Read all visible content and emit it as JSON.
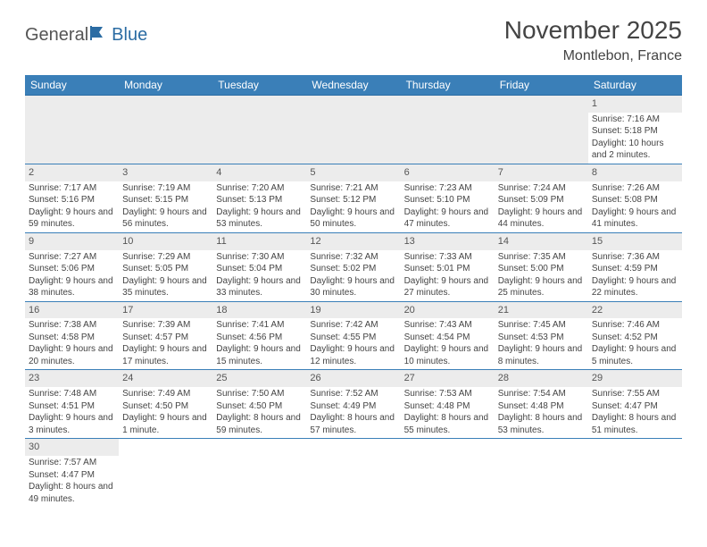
{
  "logo": {
    "general": "General",
    "blue": "Blue"
  },
  "title": "November 2025",
  "location": "Montlebon, France",
  "colors": {
    "header_bg": "#3a7fb8",
    "header_text": "#ffffff",
    "row_divider": "#3a7fb8",
    "daynum_bg": "#ececec",
    "body_text": "#444444",
    "logo_blue": "#2b6ca3"
  },
  "typography": {
    "title_fontsize": 28,
    "location_fontsize": 16,
    "header_fontsize": 12,
    "daynum_fontsize": 11,
    "cell_fontsize": 10
  },
  "weekdays": [
    "Sunday",
    "Monday",
    "Tuesday",
    "Wednesday",
    "Thursday",
    "Friday",
    "Saturday"
  ],
  "weeks": [
    [
      null,
      null,
      null,
      null,
      null,
      null,
      {
        "n": "1",
        "sr": "Sunrise: 7:16 AM",
        "ss": "Sunset: 5:18 PM",
        "dl": "Daylight: 10 hours and 2 minutes."
      }
    ],
    [
      {
        "n": "2",
        "sr": "Sunrise: 7:17 AM",
        "ss": "Sunset: 5:16 PM",
        "dl": "Daylight: 9 hours and 59 minutes."
      },
      {
        "n": "3",
        "sr": "Sunrise: 7:19 AM",
        "ss": "Sunset: 5:15 PM",
        "dl": "Daylight: 9 hours and 56 minutes."
      },
      {
        "n": "4",
        "sr": "Sunrise: 7:20 AM",
        "ss": "Sunset: 5:13 PM",
        "dl": "Daylight: 9 hours and 53 minutes."
      },
      {
        "n": "5",
        "sr": "Sunrise: 7:21 AM",
        "ss": "Sunset: 5:12 PM",
        "dl": "Daylight: 9 hours and 50 minutes."
      },
      {
        "n": "6",
        "sr": "Sunrise: 7:23 AM",
        "ss": "Sunset: 5:10 PM",
        "dl": "Daylight: 9 hours and 47 minutes."
      },
      {
        "n": "7",
        "sr": "Sunrise: 7:24 AM",
        "ss": "Sunset: 5:09 PM",
        "dl": "Daylight: 9 hours and 44 minutes."
      },
      {
        "n": "8",
        "sr": "Sunrise: 7:26 AM",
        "ss": "Sunset: 5:08 PM",
        "dl": "Daylight: 9 hours and 41 minutes."
      }
    ],
    [
      {
        "n": "9",
        "sr": "Sunrise: 7:27 AM",
        "ss": "Sunset: 5:06 PM",
        "dl": "Daylight: 9 hours and 38 minutes."
      },
      {
        "n": "10",
        "sr": "Sunrise: 7:29 AM",
        "ss": "Sunset: 5:05 PM",
        "dl": "Daylight: 9 hours and 35 minutes."
      },
      {
        "n": "11",
        "sr": "Sunrise: 7:30 AM",
        "ss": "Sunset: 5:04 PM",
        "dl": "Daylight: 9 hours and 33 minutes."
      },
      {
        "n": "12",
        "sr": "Sunrise: 7:32 AM",
        "ss": "Sunset: 5:02 PM",
        "dl": "Daylight: 9 hours and 30 minutes."
      },
      {
        "n": "13",
        "sr": "Sunrise: 7:33 AM",
        "ss": "Sunset: 5:01 PM",
        "dl": "Daylight: 9 hours and 27 minutes."
      },
      {
        "n": "14",
        "sr": "Sunrise: 7:35 AM",
        "ss": "Sunset: 5:00 PM",
        "dl": "Daylight: 9 hours and 25 minutes."
      },
      {
        "n": "15",
        "sr": "Sunrise: 7:36 AM",
        "ss": "Sunset: 4:59 PM",
        "dl": "Daylight: 9 hours and 22 minutes."
      }
    ],
    [
      {
        "n": "16",
        "sr": "Sunrise: 7:38 AM",
        "ss": "Sunset: 4:58 PM",
        "dl": "Daylight: 9 hours and 20 minutes."
      },
      {
        "n": "17",
        "sr": "Sunrise: 7:39 AM",
        "ss": "Sunset: 4:57 PM",
        "dl": "Daylight: 9 hours and 17 minutes."
      },
      {
        "n": "18",
        "sr": "Sunrise: 7:41 AM",
        "ss": "Sunset: 4:56 PM",
        "dl": "Daylight: 9 hours and 15 minutes."
      },
      {
        "n": "19",
        "sr": "Sunrise: 7:42 AM",
        "ss": "Sunset: 4:55 PM",
        "dl": "Daylight: 9 hours and 12 minutes."
      },
      {
        "n": "20",
        "sr": "Sunrise: 7:43 AM",
        "ss": "Sunset: 4:54 PM",
        "dl": "Daylight: 9 hours and 10 minutes."
      },
      {
        "n": "21",
        "sr": "Sunrise: 7:45 AM",
        "ss": "Sunset: 4:53 PM",
        "dl": "Daylight: 9 hours and 8 minutes."
      },
      {
        "n": "22",
        "sr": "Sunrise: 7:46 AM",
        "ss": "Sunset: 4:52 PM",
        "dl": "Daylight: 9 hours and 5 minutes."
      }
    ],
    [
      {
        "n": "23",
        "sr": "Sunrise: 7:48 AM",
        "ss": "Sunset: 4:51 PM",
        "dl": "Daylight: 9 hours and 3 minutes."
      },
      {
        "n": "24",
        "sr": "Sunrise: 7:49 AM",
        "ss": "Sunset: 4:50 PM",
        "dl": "Daylight: 9 hours and 1 minute."
      },
      {
        "n": "25",
        "sr": "Sunrise: 7:50 AM",
        "ss": "Sunset: 4:50 PM",
        "dl": "Daylight: 8 hours and 59 minutes."
      },
      {
        "n": "26",
        "sr": "Sunrise: 7:52 AM",
        "ss": "Sunset: 4:49 PM",
        "dl": "Daylight: 8 hours and 57 minutes."
      },
      {
        "n": "27",
        "sr": "Sunrise: 7:53 AM",
        "ss": "Sunset: 4:48 PM",
        "dl": "Daylight: 8 hours and 55 minutes."
      },
      {
        "n": "28",
        "sr": "Sunrise: 7:54 AM",
        "ss": "Sunset: 4:48 PM",
        "dl": "Daylight: 8 hours and 53 minutes."
      },
      {
        "n": "29",
        "sr": "Sunrise: 7:55 AM",
        "ss": "Sunset: 4:47 PM",
        "dl": "Daylight: 8 hours and 51 minutes."
      }
    ],
    [
      {
        "n": "30",
        "sr": "Sunrise: 7:57 AM",
        "ss": "Sunset: 4:47 PM",
        "dl": "Daylight: 8 hours and 49 minutes."
      },
      null,
      null,
      null,
      null,
      null,
      null
    ]
  ]
}
